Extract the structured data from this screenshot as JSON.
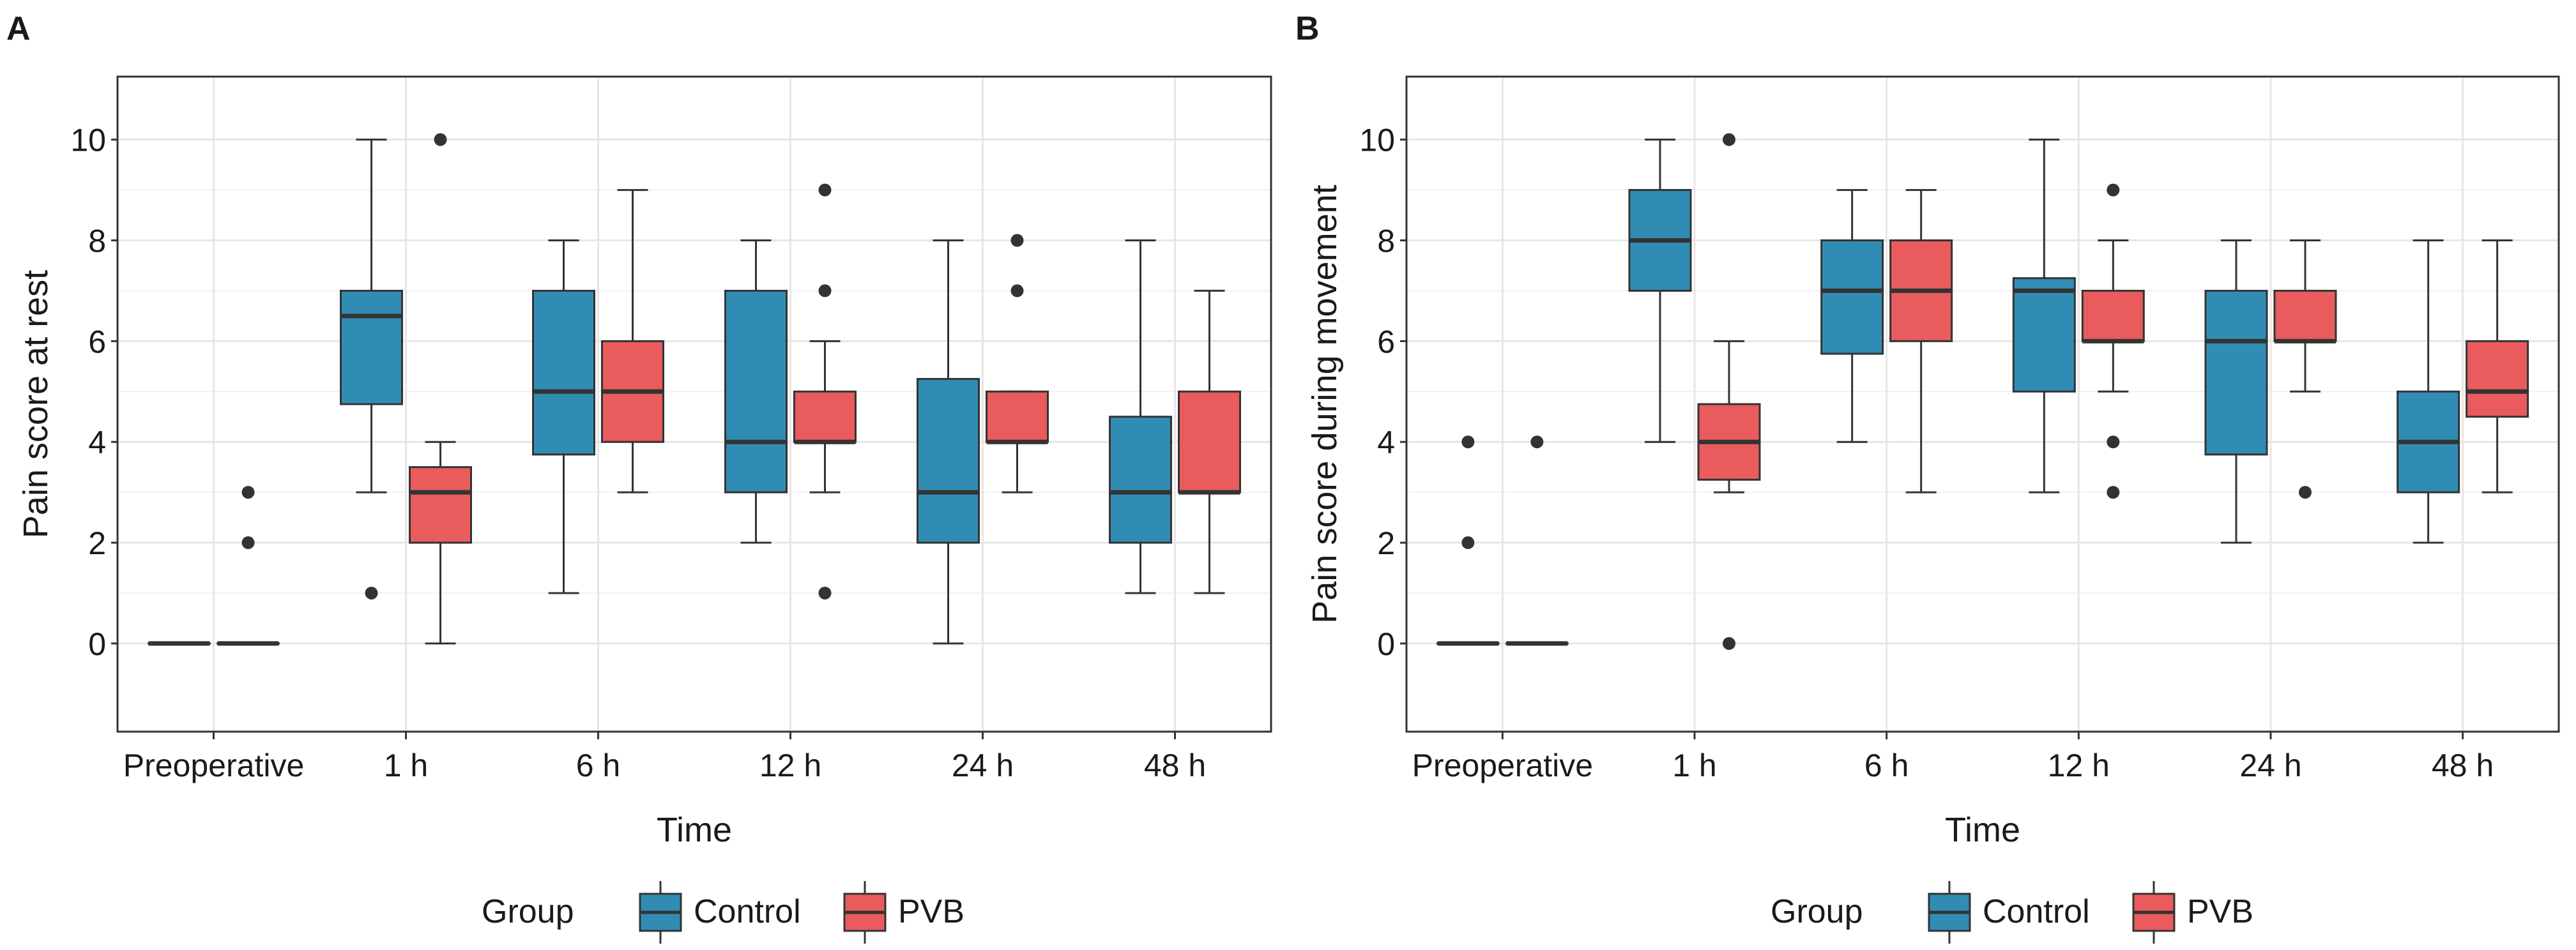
{
  "colors": {
    "Control": "#318CB4",
    "PVB": "#E95B5C"
  },
  "legend": {
    "title": "Group",
    "items": [
      "Control",
      "PVB"
    ]
  },
  "chart_data": [
    {
      "type": "box",
      "panel": "A",
      "xlabel": "Time",
      "ylabel": "Pain score at rest",
      "categories": [
        "Preoperative",
        "1 h",
        "6 h",
        "12 h",
        "24 h",
        "48 h"
      ],
      "yticks": [
        0,
        2,
        4,
        6,
        8,
        10
      ],
      "ylim": [
        -1.75,
        11.25
      ],
      "grid": true,
      "legend_position": "bottom",
      "series": [
        {
          "name": "Control",
          "boxes": [
            {
              "lw": 0,
              "q1": 0,
              "med": 0,
              "q3": 0,
              "uw": 0,
              "out": []
            },
            {
              "lw": 3,
              "q1": 4.75,
              "med": 6.5,
              "q3": 7,
              "uw": 10,
              "out": [
                1
              ]
            },
            {
              "lw": 1,
              "q1": 3.75,
              "med": 5,
              "q3": 7,
              "uw": 8,
              "out": []
            },
            {
              "lw": 2,
              "q1": 3,
              "med": 4,
              "q3": 7,
              "uw": 8,
              "out": []
            },
            {
              "lw": 0,
              "q1": 2,
              "med": 3,
              "q3": 5.25,
              "uw": 8,
              "out": []
            },
            {
              "lw": 1,
              "q1": 2,
              "med": 3,
              "q3": 4.5,
              "uw": 8,
              "out": []
            }
          ]
        },
        {
          "name": "PVB",
          "boxes": [
            {
              "lw": 0,
              "q1": 0,
              "med": 0,
              "q3": 0,
              "uw": 0,
              "out": [
                2,
                3
              ]
            },
            {
              "lw": 0,
              "q1": 2,
              "med": 3,
              "q3": 3.5,
              "uw": 4,
              "out": [
                10
              ]
            },
            {
              "lw": 3,
              "q1": 4,
              "med": 5,
              "q3": 6,
              "uw": 9,
              "out": []
            },
            {
              "lw": 3,
              "q1": 4,
              "med": 4,
              "q3": 5,
              "uw": 6,
              "out": [
                1,
                7,
                9
              ]
            },
            {
              "lw": 3,
              "q1": 4,
              "med": 4,
              "q3": 5,
              "uw": 5,
              "out": [
                7,
                8
              ]
            },
            {
              "lw": 1,
              "q1": 3,
              "med": 3,
              "q3": 5,
              "uw": 7,
              "out": []
            }
          ]
        }
      ]
    },
    {
      "type": "box",
      "panel": "B",
      "xlabel": "Time",
      "ylabel": "Pain score during movement",
      "categories": [
        "Preoperative",
        "1 h",
        "6 h",
        "12 h",
        "24 h",
        "48 h"
      ],
      "yticks": [
        0,
        2,
        4,
        6,
        8,
        10
      ],
      "ylim": [
        -1.75,
        11.25
      ],
      "grid": true,
      "legend_position": "bottom",
      "series": [
        {
          "name": "Control",
          "boxes": [
            {
              "lw": 0,
              "q1": 0,
              "med": 0,
              "q3": 0,
              "uw": 0,
              "out": [
                2,
                4
              ]
            },
            {
              "lw": 4,
              "q1": 7,
              "med": 8,
              "q3": 9,
              "uw": 10,
              "out": []
            },
            {
              "lw": 4,
              "q1": 5.75,
              "med": 7,
              "q3": 8,
              "uw": 9,
              "out": []
            },
            {
              "lw": 3,
              "q1": 5,
              "med": 7,
              "q3": 7.25,
              "uw": 10,
              "out": []
            },
            {
              "lw": 2,
              "q1": 3.75,
              "med": 6,
              "q3": 7,
              "uw": 8,
              "out": []
            },
            {
              "lw": 2,
              "q1": 3,
              "med": 4,
              "q3": 5,
              "uw": 8,
              "out": []
            }
          ]
        },
        {
          "name": "PVB",
          "boxes": [
            {
              "lw": 0,
              "q1": 0,
              "med": 0,
              "q3": 0,
              "uw": 0,
              "out": [
                4
              ]
            },
            {
              "lw": 3,
              "q1": 3.25,
              "med": 4,
              "q3": 4.75,
              "uw": 6,
              "out": [
                0,
                10
              ]
            },
            {
              "lw": 3,
              "q1": 6,
              "med": 7,
              "q3": 8,
              "uw": 9,
              "out": []
            },
            {
              "lw": 5,
              "q1": 6,
              "med": 6,
              "q3": 7,
              "uw": 8,
              "out": [
                3,
                4,
                9
              ]
            },
            {
              "lw": 5,
              "q1": 6,
              "med": 6,
              "q3": 7,
              "uw": 8,
              "out": [
                3
              ]
            },
            {
              "lw": 3,
              "q1": 4.5,
              "med": 5,
              "q3": 6,
              "uw": 8,
              "out": []
            }
          ]
        }
      ]
    }
  ]
}
